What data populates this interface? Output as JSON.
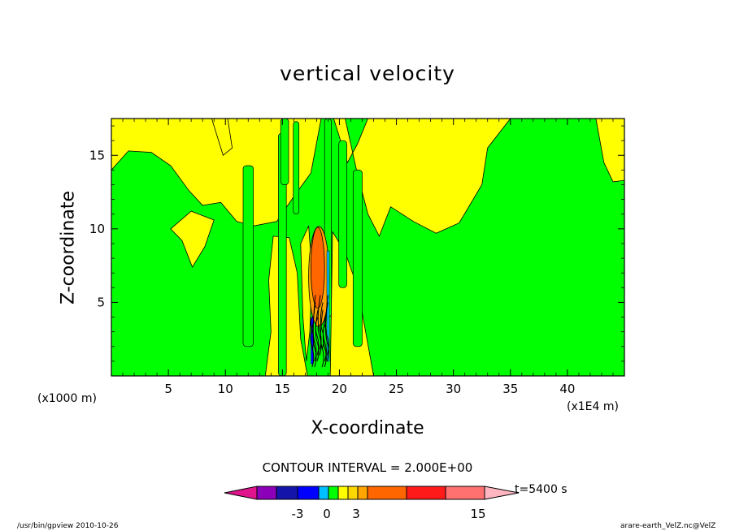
{
  "chart_data": {
    "type": "heatmap",
    "title": "vertical velocity",
    "xlabel": "X-coordinate",
    "ylabel": "Z-coordinate",
    "x_unit_label": "(x1000 m)",
    "x_unit_label2": "(x1E4 m)",
    "xlim": [
      0,
      45
    ],
    "ylim": [
      0,
      17.5
    ],
    "x_ticks": [
      5,
      10,
      15,
      20,
      25,
      30,
      35,
      40
    ],
    "y_ticks": [
      5,
      10,
      15
    ],
    "contour_interval_text": "CONTOUR INTERVAL = 2.000E+00",
    "time_label": "t=5400 s",
    "colorbar": {
      "tick_labels": [
        "-3",
        "0",
        "3",
        "15"
      ],
      "colors": [
        "#e0148c",
        "#8b00b8",
        "#1414aa",
        "#0000ff",
        "#00bfff",
        "#00ff00",
        "#ffff00",
        "#ffd700",
        "#ffa500",
        "#ff6600",
        "#ff1a1a",
        "#ff7070",
        "#ffb6c1"
      ]
    },
    "dominant_field_color": "#00ff00",
    "positive_field_color": "#ffff00",
    "updraft_core_color": "#ff6600",
    "updraft_core_center_x": 18.2,
    "updraft_core_z_range": [
      4,
      9.5
    ]
  },
  "footer": {
    "left": "/usr/bin/gpview   2010-10-26",
    "right": "arare-earth_VelZ.nc@VelZ"
  }
}
